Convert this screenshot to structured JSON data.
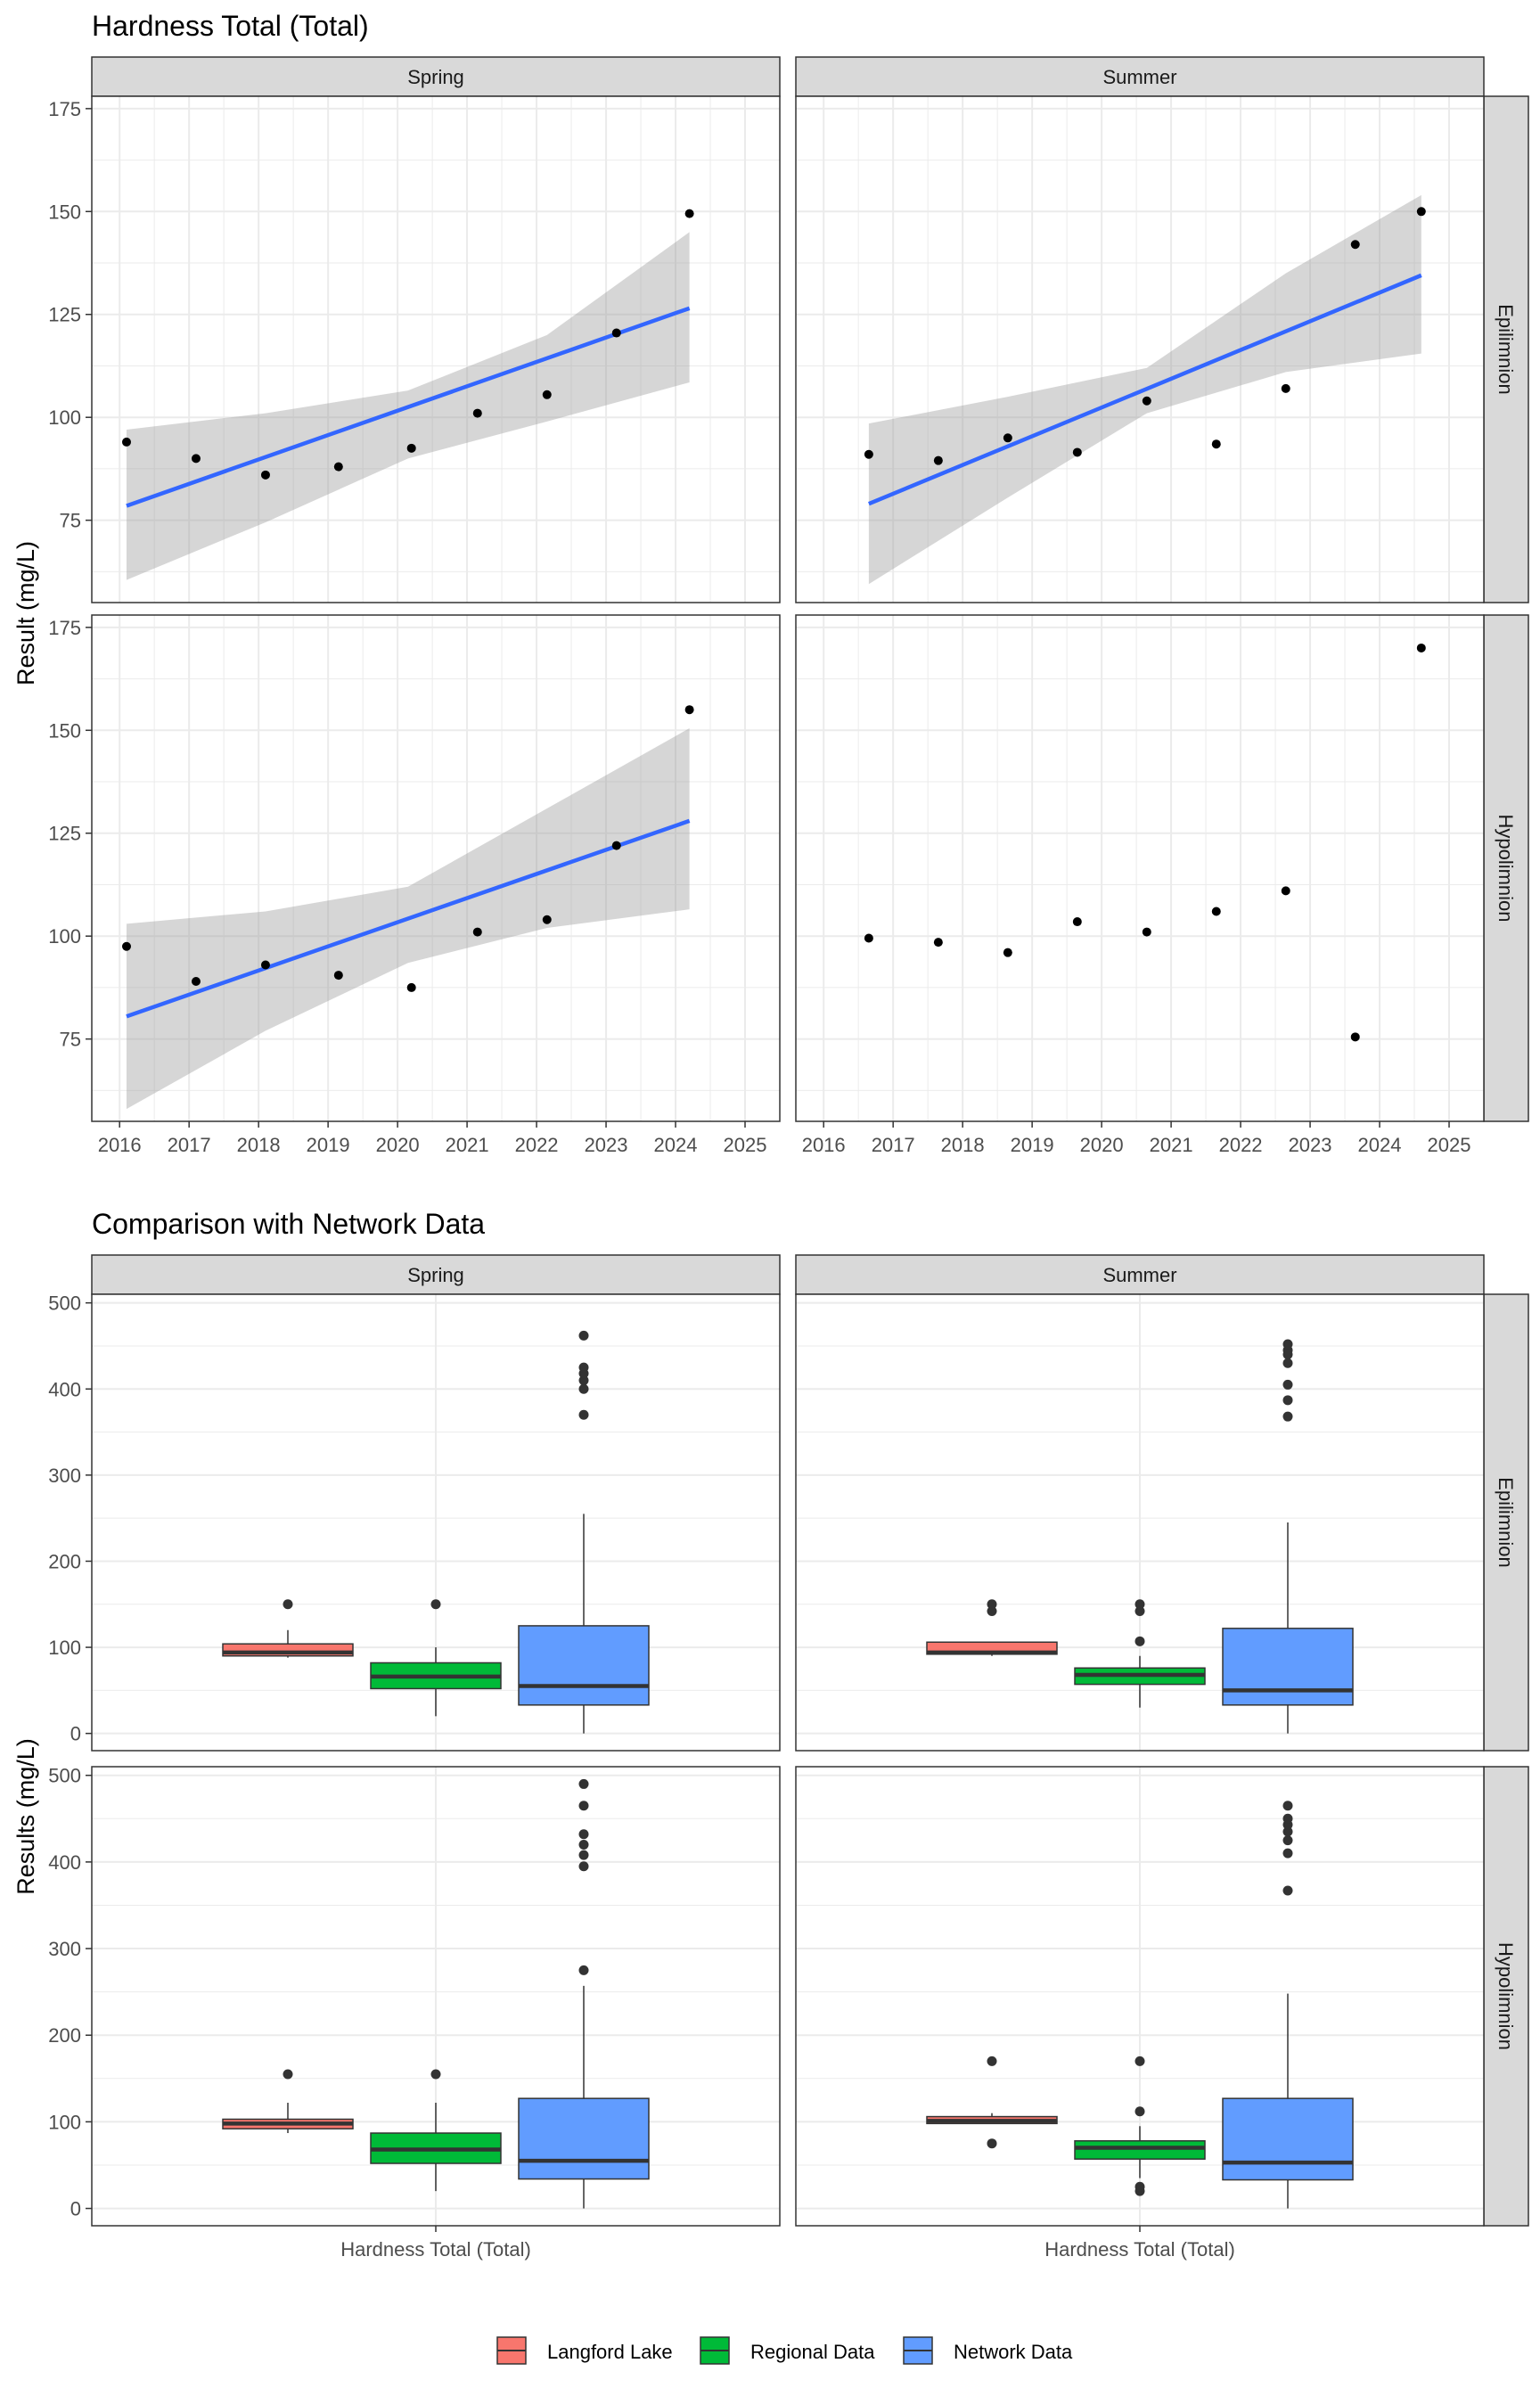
{
  "colors": {
    "strip_fill": "#d9d9d9",
    "grid": "#ebebeb",
    "panel_border": "#333333",
    "point": "#000000",
    "trend_line": "#3366ff",
    "ribbon": "#999999",
    "langford": "#f8766d",
    "regional": "#00ba38",
    "network": "#619cff"
  },
  "legend": {
    "items": [
      {
        "label": "Langford Lake",
        "color_key": "langford"
      },
      {
        "label": "Regional Data",
        "color_key": "regional"
      },
      {
        "label": "Network Data",
        "color_key": "network"
      }
    ],
    "placement": "bottom"
  },
  "chart_data": [
    {
      "type": "scatter",
      "title": "Hardness Total (Total)",
      "ylabel": "Result (mg/L)",
      "xlabel": "",
      "columns": [
        "Spring",
        "Summer"
      ],
      "rows": [
        "Epilimnion",
        "Hypolimnion"
      ],
      "x_ticks": [
        "2016",
        "2017",
        "2018",
        "2019",
        "2020",
        "2021",
        "2022",
        "2023",
        "2024",
        "2025"
      ],
      "xlim": [
        2015.6,
        2025.5
      ],
      "y_ticks": [
        75,
        100,
        125,
        150,
        175
      ],
      "ylim": [
        55,
        178
      ],
      "grid": true,
      "panels": [
        {
          "column": "Spring",
          "row": "Epilimnion",
          "points": [
            [
              2016.1,
              94
            ],
            [
              2017.1,
              90
            ],
            [
              2018.1,
              86
            ],
            [
              2019.15,
              88
            ],
            [
              2020.2,
              92.5
            ],
            [
              2021.15,
              101
            ],
            [
              2022.15,
              105.5
            ],
            [
              2023.15,
              120.5
            ],
            [
              2024.2,
              149.5
            ]
          ],
          "trend": {
            "x": [
              2016.1,
              2024.2
            ],
            "y": [
              78.5,
              126.5
            ]
          },
          "band": [
            [
              2016.1,
              60.5,
              97
            ],
            [
              2018.1,
              74.5,
              101
            ],
            [
              2020.15,
              90,
              106.5
            ],
            [
              2022.15,
              99,
              120
            ],
            [
              2024.2,
              108.5,
              145
            ]
          ]
        },
        {
          "column": "Summer",
          "row": "Epilimnion",
          "points": [
            [
              2016.65,
              91
            ],
            [
              2017.65,
              89.5
            ],
            [
              2018.65,
              95
            ],
            [
              2019.65,
              91.5
            ],
            [
              2020.65,
              104
            ],
            [
              2021.65,
              93.5
            ],
            [
              2022.65,
              107
            ],
            [
              2023.65,
              142
            ],
            [
              2024.6,
              150
            ]
          ],
          "trend": {
            "x": [
              2016.65,
              2024.6
            ],
            "y": [
              79,
              134.5
            ]
          },
          "band": [
            [
              2016.65,
              59.5,
              98.5
            ],
            [
              2018.65,
              80.5,
              105
            ],
            [
              2020.65,
              101,
              112
            ],
            [
              2022.65,
              111,
              135
            ],
            [
              2024.6,
              115.5,
              154
            ]
          ]
        },
        {
          "column": "Spring",
          "row": "Hypolimnion",
          "points": [
            [
              2016.1,
              97.5
            ],
            [
              2017.1,
              89
            ],
            [
              2018.1,
              93
            ],
            [
              2019.15,
              90.5
            ],
            [
              2020.2,
              87.5
            ],
            [
              2021.15,
              101
            ],
            [
              2022.15,
              104
            ],
            [
              2023.15,
              122
            ],
            [
              2024.2,
              155
            ]
          ],
          "trend": {
            "x": [
              2016.1,
              2024.2
            ],
            "y": [
              80.5,
              128
            ]
          },
          "band": [
            [
              2016.1,
              58,
              103
            ],
            [
              2018.1,
              77,
              106
            ],
            [
              2020.15,
              93.5,
              112
            ],
            [
              2022.15,
              102,
              131
            ],
            [
              2024.2,
              106.5,
              150.5
            ]
          ]
        },
        {
          "column": "Summer",
          "row": "Hypolimnion",
          "points": [
            [
              2016.65,
              99.5
            ],
            [
              2017.65,
              98.5
            ],
            [
              2018.65,
              96
            ],
            [
              2019.65,
              103.5
            ],
            [
              2020.65,
              101
            ],
            [
              2021.65,
              106
            ],
            [
              2022.65,
              111
            ],
            [
              2023.65,
              75.5
            ],
            [
              2024.6,
              170
            ]
          ],
          "trend": null,
          "band": null
        }
      ]
    },
    {
      "type": "box",
      "title": "Comparison with Network Data",
      "ylabel": "Results (mg/L)",
      "xlabel": "",
      "x_tick_label": "Hardness Total (Total)",
      "columns": [
        "Spring",
        "Summer"
      ],
      "rows": [
        "Epilimnion",
        "Hypolimnion"
      ],
      "y_ticks": [
        0,
        100,
        200,
        300,
        400,
        500
      ],
      "ylim": [
        -20,
        510
      ],
      "grid": true,
      "series": [
        "Langford Lake",
        "Regional Data",
        "Network Data"
      ],
      "panels": [
        {
          "column": "Spring",
          "row": "Epilimnion",
          "boxes": [
            {
              "series": "Langford Lake",
              "min": 88,
              "q1": 90,
              "median": 94,
              "q3": 104,
              "max": 120,
              "outliers": [
                150
              ]
            },
            {
              "series": "Regional Data",
              "min": 20,
              "q1": 52,
              "median": 66,
              "q3": 82,
              "max": 100,
              "outliers": [
                150
              ]
            },
            {
              "series": "Network Data",
              "min": 0,
              "q1": 33,
              "median": 55,
              "q3": 125,
              "max": 255,
              "outliers": [
                370,
                400,
                410,
                418,
                425,
                462
              ]
            }
          ]
        },
        {
          "column": "Summer",
          "row": "Epilimnion",
          "boxes": [
            {
              "series": "Langford Lake",
              "min": 90,
              "q1": 92,
              "median": 94,
              "q3": 106,
              "max": 106,
              "outliers": [
                142,
                150
              ]
            },
            {
              "series": "Regional Data",
              "min": 30,
              "q1": 57,
              "median": 68,
              "q3": 76,
              "max": 90,
              "outliers": [
                107,
                142,
                150
              ]
            },
            {
              "series": "Network Data",
              "min": 0,
              "q1": 33,
              "median": 50,
              "q3": 122,
              "max": 245,
              "outliers": [
                368,
                387,
                405,
                430,
                440,
                445,
                452
              ]
            }
          ]
        },
        {
          "column": "Spring",
          "row": "Hypolimnion",
          "boxes": [
            {
              "series": "Langford Lake",
              "min": 87,
              "q1": 92,
              "median": 98,
              "q3": 103,
              "max": 122,
              "outliers": [
                155
              ]
            },
            {
              "series": "Regional Data",
              "min": 20,
              "q1": 52,
              "median": 68,
              "q3": 87,
              "max": 122,
              "outliers": [
                155
              ]
            },
            {
              "series": "Network Data",
              "min": 0,
              "q1": 34,
              "median": 55,
              "q3": 127,
              "max": 257,
              "outliers": [
                275,
                395,
                408,
                420,
                432,
                465,
                490
              ]
            }
          ]
        },
        {
          "column": "Summer",
          "row": "Hypolimnion",
          "boxes": [
            {
              "series": "Langford Lake",
              "min": 98,
              "q1": 98,
              "median": 101,
              "q3": 106,
              "max": 110,
              "outliers": [
                75,
                170
              ]
            },
            {
              "series": "Regional Data",
              "min": 35,
              "q1": 57,
              "median": 70,
              "q3": 78,
              "max": 95,
              "outliers": [
                20,
                25,
                112,
                170
              ]
            },
            {
              "series": "Network Data",
              "min": 0,
              "q1": 33,
              "median": 53,
              "q3": 127,
              "max": 248,
              "outliers": [
                367,
                410,
                425,
                435,
                443,
                450,
                465
              ]
            }
          ]
        }
      ]
    }
  ]
}
